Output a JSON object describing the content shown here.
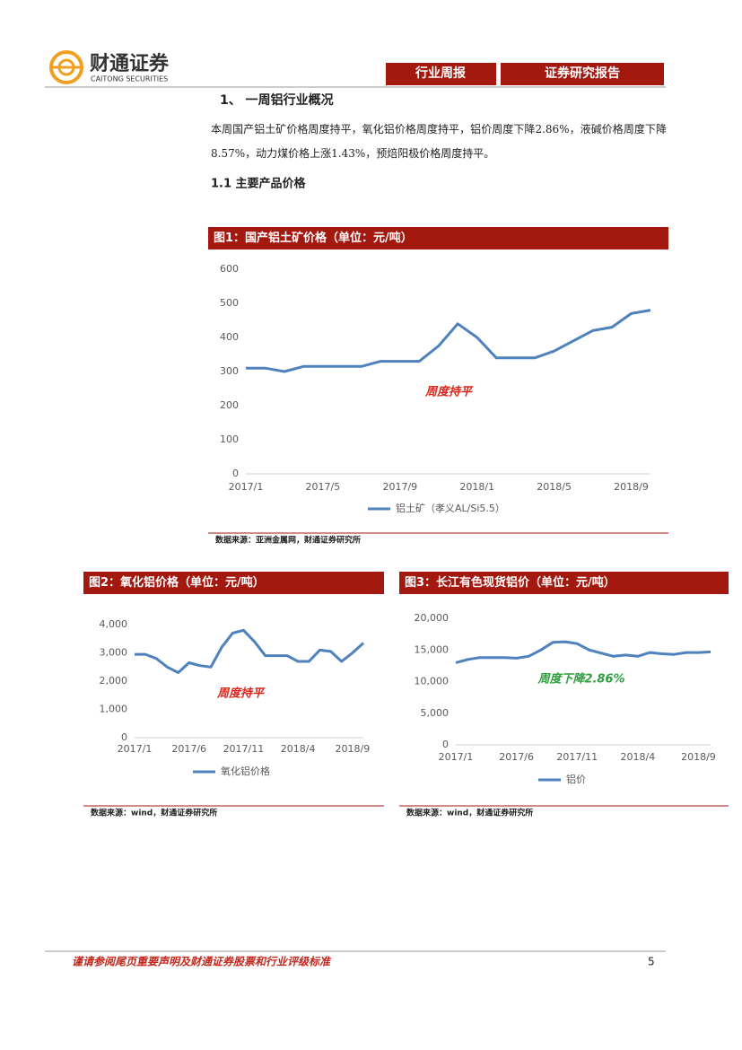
{
  "header": {
    "logo_cn": "财通证券",
    "logo_en": "CAITONG SECURITIES",
    "tab_1": "行业周报",
    "tab_2": "证券研究报告"
  },
  "section": {
    "title": "1、 一周铝行业概况",
    "paragraph": "本周国产铝土矿价格周度持平，氧化铝价格周度持平，铝价周度下降2.86%，液碱价格周度下降8.57%，动力煤价格上涨1.43%，预焙阳极价格周度持平。",
    "subtitle": "1.1  主要产品价格"
  },
  "chart_data": [
    {
      "type": "line",
      "title": "图1：国产铝土矿价格（单位：元/吨）",
      "source": "数据来源：亚洲金属网，财通证券研究所",
      "annotation": "周度持平",
      "annotation_color": "#d9261c",
      "x": [
        "2017/1",
        "2017/2",
        "2017/3",
        "2017/4",
        "2017/5",
        "2017/6",
        "2017/7",
        "2017/8",
        "2017/9",
        "2017/10",
        "2017/11",
        "2017/12",
        "2018/1",
        "2018/2",
        "2018/3",
        "2018/4",
        "2018/5",
        "2018/6",
        "2018/7",
        "2018/8",
        "2018/9",
        "2018/10"
      ],
      "series": [
        {
          "name": "铝土矿（孝义AL/Si5.5）",
          "color": "#4f81bd",
          "values": [
            310,
            310,
            300,
            315,
            315,
            315,
            315,
            330,
            330,
            330,
            375,
            440,
            400,
            340,
            340,
            340,
            360,
            390,
            420,
            430,
            470,
            480
          ]
        }
      ],
      "xlim": [
        "2017/1",
        "2018/10"
      ],
      "xticks": [
        "2017/1",
        "2017/5",
        "2017/9",
        "2018/1",
        "2018/5",
        "2018/9"
      ],
      "ylim": [
        0,
        600
      ],
      "yticks": [
        0,
        100,
        200,
        300,
        400,
        500,
        600
      ]
    },
    {
      "type": "line",
      "title": "图2：氧化铝价格（单位：元/吨）",
      "source": "数据来源：wind，财通证券研究所",
      "annotation": "周度持平",
      "annotation_color": "#d9261c",
      "x": [
        "2017/1",
        "2017/2",
        "2017/3",
        "2017/4",
        "2017/5",
        "2017/6",
        "2017/7",
        "2017/8",
        "2017/9",
        "2017/10",
        "2017/11",
        "2017/12",
        "2018/1",
        "2018/2",
        "2018/3",
        "2018/4",
        "2018/5",
        "2018/6",
        "2018/7",
        "2018/8",
        "2018/9",
        "2018/10"
      ],
      "series": [
        {
          "name": "氧化铝价格",
          "color": "#4f81bd",
          "values": [
            2950,
            2950,
            2800,
            2500,
            2300,
            2650,
            2550,
            2500,
            3200,
            3700,
            3800,
            3400,
            2900,
            2900,
            2900,
            2700,
            2700,
            3100,
            3050,
            2700,
            3000,
            3350
          ]
        }
      ],
      "xlim": [
        "2017/1",
        "2018/10"
      ],
      "xticks": [
        "2017/1",
        "2017/6",
        "2017/11",
        "2018/4",
        "2018/9"
      ],
      "ylim": [
        0,
        4000
      ],
      "yticks": [
        0,
        {
          "value": 1000,
          "label": "1,000"
        },
        {
          "value": 2000,
          "label": "2,000"
        },
        {
          "value": 3000,
          "label": "3,000"
        },
        {
          "value": 4000,
          "label": "4,000"
        }
      ]
    },
    {
      "type": "line",
      "title": "图3：长江有色现货铝价（单位：元/吨）",
      "source": "数据来源：wind，财通证券研究所",
      "annotation": "周度下降2.86%",
      "annotation_color": "#2e9e3e",
      "x": [
        "2017/1",
        "2017/2",
        "2017/3",
        "2017/4",
        "2017/5",
        "2017/6",
        "2017/7",
        "2017/8",
        "2017/9",
        "2017/10",
        "2017/11",
        "2017/12",
        "2018/1",
        "2018/2",
        "2018/3",
        "2018/4",
        "2018/5",
        "2018/6",
        "2018/7",
        "2018/8",
        "2018/9",
        "2018/10"
      ],
      "series": [
        {
          "name": "铝价",
          "color": "#4f81bd",
          "values": [
            13000,
            13500,
            13800,
            13800,
            13800,
            13700,
            14000,
            15000,
            16200,
            16300,
            16000,
            15000,
            14500,
            14000,
            14200,
            14000,
            14600,
            14400,
            14300,
            14600,
            14600,
            14700
          ]
        }
      ],
      "xlim": [
        "2017/1",
        "2018/10"
      ],
      "xticks": [
        "2017/1",
        "2017/6",
        "2017/11",
        "2018/4",
        "2018/9"
      ],
      "ylim": [
        0,
        20000
      ],
      "yticks": [
        0,
        {
          "value": 5000,
          "label": "5,000"
        },
        {
          "value": 10000,
          "label": "10,000"
        },
        {
          "value": 15000,
          "label": "15,000"
        },
        {
          "value": 20000,
          "label": "20,000"
        }
      ]
    }
  ],
  "footer": {
    "disclaimer": "谨请参阅尾页重要声明及财通证券股票和行业评级标准",
    "page_number": "5"
  }
}
